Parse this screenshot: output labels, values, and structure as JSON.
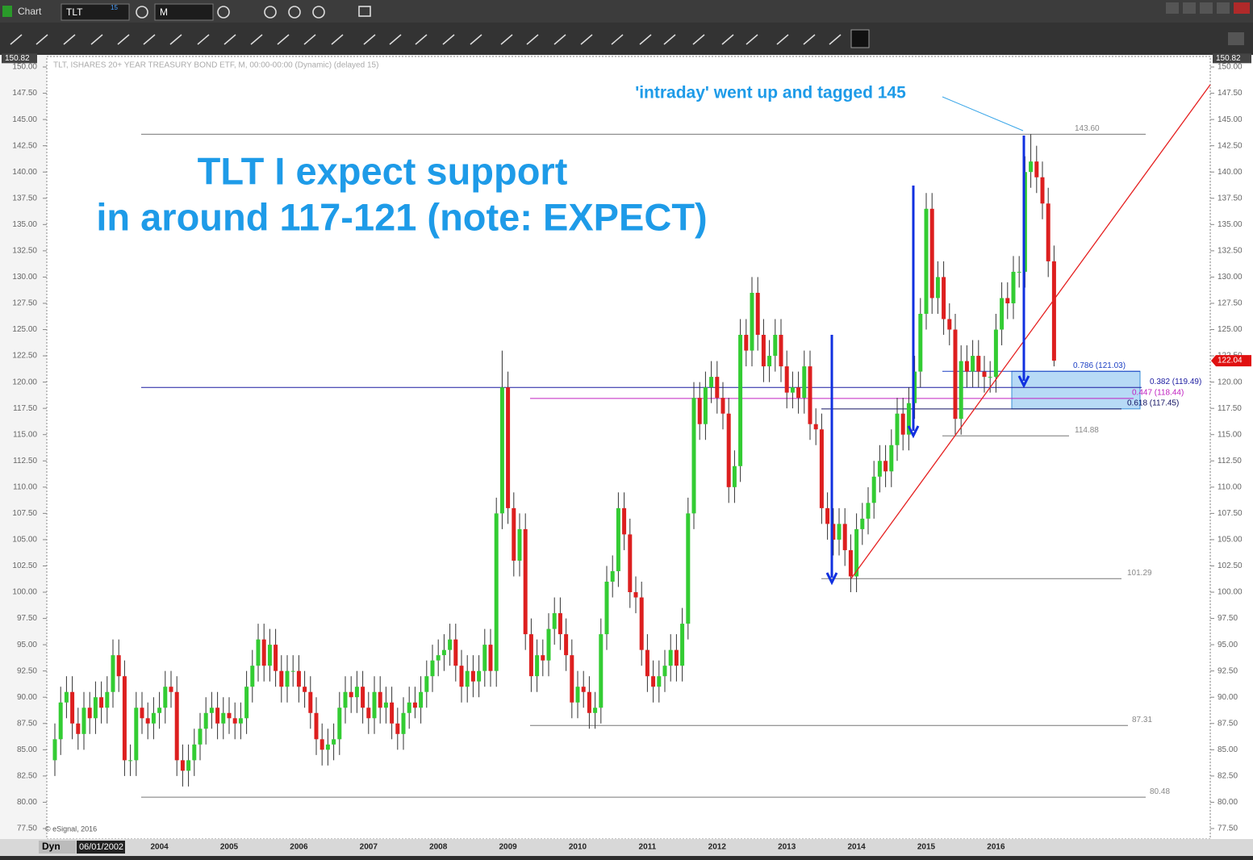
{
  "app": {
    "window_title": "Chart",
    "symbol": "TLT",
    "symbol_badge": "15",
    "interval": "M",
    "mode": "Dyn",
    "start_date": "06/01/2002",
    "copyright": "© eSignal, 2016"
  },
  "chart_data": {
    "type": "candlestick",
    "subtitle": "TLT, ISHARES 20+ YEAR TREASURY BOND ETF, M, 00:00-00:00 (Dynamic) (delayed 15)",
    "annotations": [
      "'intraday' went up and tagged 145",
      "TLT I expect support",
      "in around 117-121 (note: EXPECT)"
    ],
    "price_box": 150.82,
    "last_price": 122.04,
    "up_color": "#33cc33",
    "down_color": "#dd1f1f",
    "categories": [
      null,
      null,
      null,
      null,
      null,
      null,
      null,
      null,
      null,
      null,
      null,
      null,
      null,
      null,
      null,
      null,
      null,
      null,
      "2004",
      null,
      null,
      null,
      null,
      null,
      null,
      null,
      null,
      null,
      null,
      null,
      "2005",
      null,
      null,
      null,
      null,
      null,
      null,
      null,
      null,
      null,
      null,
      null,
      "2006",
      null,
      null,
      null,
      null,
      null,
      null,
      null,
      null,
      null,
      null,
      null,
      "2007",
      null,
      null,
      null,
      null,
      null,
      null,
      null,
      null,
      null,
      null,
      null,
      "2008",
      null,
      null,
      null,
      null,
      null,
      null,
      null,
      null,
      null,
      null,
      null,
      "2009",
      null,
      null,
      null,
      null,
      null,
      null,
      null,
      null,
      null,
      null,
      null,
      "2010",
      null,
      null,
      null,
      null,
      null,
      null,
      null,
      null,
      null,
      null,
      null,
      "2011",
      null,
      null,
      null,
      null,
      null,
      null,
      null,
      null,
      null,
      null,
      null,
      "2012",
      null,
      null,
      null,
      null,
      null,
      null,
      null,
      null,
      null,
      null,
      null,
      "2013",
      null,
      null,
      null,
      null,
      null,
      null,
      null,
      null,
      null,
      null,
      null,
      "2014",
      null,
      null,
      null,
      null,
      null,
      null,
      null,
      null,
      null,
      null,
      null,
      "2015",
      null,
      null,
      null,
      null,
      null,
      null,
      null,
      null,
      null,
      null,
      null,
      "2016",
      null,
      null,
      null,
      null,
      null,
      null,
      null,
      null,
      null,
      null
    ],
    "open": [
      84,
      86,
      89.5,
      90.5,
      87.5,
      86.5,
      89,
      88,
      90,
      89,
      90.5,
      94,
      92,
      84,
      84,
      89,
      88,
      87.5,
      88.5,
      89,
      91,
      90.5,
      84,
      83,
      84,
      85.5,
      87,
      88.5,
      89,
      87.5,
      88.5,
      88,
      87.5,
      88,
      91,
      93,
      95.5,
      93,
      95,
      92.5,
      91,
      92.5,
      92.5,
      91,
      90.5,
      88.5,
      86,
      85,
      85.5,
      86,
      89,
      90.5,
      90,
      91,
      89,
      88,
      90.5,
      89,
      89.5,
      87.5,
      86.5,
      88.5,
      89.5,
      89,
      90.5,
      92,
      93.5,
      94,
      94.5,
      95.5,
      93,
      91,
      92.5,
      91.5,
      92.5,
      95,
      92.5,
      107.5,
      119.5,
      108,
      103,
      106,
      96,
      92,
      94,
      93.5,
      96.5,
      98,
      96,
      94,
      89.5,
      91,
      90.5,
      88.5,
      89,
      96,
      101,
      102,
      108,
      105.5,
      100,
      99.5,
      94.5,
      92,
      91,
      92,
      93,
      94.5,
      93,
      97,
      107.5,
      118.5,
      116,
      119.5,
      120.5,
      118.5,
      117,
      110,
      112,
      124.5,
      123,
      128.5,
      124.5,
      121.5,
      122.5,
      124.5,
      121.5,
      119,
      119.5,
      118.5,
      121.5,
      116,
      115.5,
      108,
      106.5,
      105,
      106.5,
      104,
      101.5,
      106,
      107,
      108.5,
      111,
      112.5,
      111.5,
      114,
      117,
      115,
      118,
      121,
      126.5,
      136.5,
      128,
      130,
      126,
      125,
      116.5,
      122,
      121,
      122.5,
      121,
      120.5,
      120.5,
      125,
      128,
      127.5,
      130.5,
      130.5,
      140,
      141,
      139.5,
      137,
      131.5
    ],
    "high": [
      87.5,
      91,
      92,
      92,
      89,
      90.5,
      90.5,
      91.5,
      91.5,
      92,
      95.5,
      95.5,
      93.5,
      85.5,
      90.5,
      90.5,
      89.5,
      90,
      90.5,
      92.5,
      92.5,
      92,
      85.5,
      85.5,
      87,
      88.5,
      90,
      90.5,
      90.5,
      90,
      90,
      89.5,
      89.5,
      92.5,
      94.5,
      97,
      97,
      96.5,
      96.5,
      94,
      94,
      94,
      94,
      92.5,
      92,
      90,
      87.5,
      87,
      87.5,
      90.5,
      92,
      92,
      92.5,
      92.5,
      90.5,
      92,
      92,
      91,
      91,
      89,
      90,
      91,
      91,
      92,
      93.5,
      95,
      95.5,
      96,
      97,
      97,
      94.5,
      94,
      94,
      94,
      96.5,
      96.5,
      109,
      123,
      121,
      109.5,
      107.5,
      107.5,
      97.5,
      95.5,
      95.5,
      98,
      99.5,
      99.5,
      97.5,
      95.5,
      92.5,
      92.5,
      92,
      90.5,
      97.5,
      102.5,
      103.5,
      109.5,
      109.5,
      107,
      101.5,
      101,
      96,
      93.5,
      93.5,
      94.5,
      96,
      96,
      98.5,
      109,
      120,
      120,
      121,
      122,
      122,
      120,
      118.5,
      113.5,
      126,
      126,
      130,
      130,
      126,
      124,
      126,
      126,
      123,
      121,
      121,
      123,
      123,
      117.5,
      117,
      109.5,
      108,
      108,
      108,
      105.5,
      107.5,
      108.5,
      110,
      112.5,
      114,
      114,
      115.5,
      118.5,
      118.5,
      119.5,
      122.5,
      128,
      138,
      138,
      131.5,
      131.5,
      127.5,
      126.5,
      123.5,
      123.5,
      124,
      124,
      122.5,
      122,
      126.5,
      129.5,
      129.5,
      132,
      132,
      141.5,
      143.6,
      142.5,
      141,
      138.5,
      133
    ],
    "low": [
      82.5,
      84.5,
      88,
      86,
      85,
      85,
      86.5,
      86.5,
      87.5,
      87.5,
      89,
      90.5,
      82.5,
      82.5,
      82.5,
      86.5,
      86,
      86,
      87,
      87.5,
      89,
      82.5,
      81.5,
      81.5,
      82.5,
      84,
      85.5,
      87,
      86,
      86,
      86.5,
      86,
      86,
      86.5,
      89.5,
      91.5,
      91.5,
      91.5,
      91,
      89.5,
      89.5,
      91,
      89.5,
      89,
      87,
      84.5,
      83.5,
      83.5,
      84,
      84.5,
      87.5,
      88.5,
      88.5,
      87.5,
      86.5,
      86.5,
      87.5,
      87.5,
      86,
      85,
      85,
      87,
      88,
      87.5,
      89,
      90.5,
      92,
      92.5,
      93,
      91.5,
      89.5,
      89.5,
      90,
      90,
      91,
      91,
      91,
      106,
      106.5,
      101.5,
      101.5,
      94.5,
      90.5,
      90.5,
      92,
      92,
      95,
      94.5,
      92.5,
      88,
      88,
      89,
      87,
      87,
      87.5,
      94.5,
      99.5,
      100.5,
      104,
      98.5,
      98,
      93,
      90.5,
      89.5,
      89.5,
      90.5,
      91.5,
      91.5,
      91.5,
      95.5,
      106,
      114.5,
      114.5,
      118,
      117,
      115.5,
      108.5,
      108.5,
      110.5,
      121.5,
      121.5,
      123,
      120,
      120,
      121,
      120,
      117.5,
      117.5,
      117,
      117,
      114.5,
      114,
      106.5,
      105,
      103.5,
      103.5,
      102.5,
      100,
      100,
      104.5,
      105.5,
      107,
      109.5,
      110,
      110,
      112.5,
      113.5,
      113.5,
      116.5,
      119.5,
      125,
      126.5,
      126.5,
      124.5,
      123.5,
      115,
      115,
      119.5,
      119.5,
      119.5,
      119,
      119,
      119,
      123.5,
      126,
      126,
      129,
      129,
      138.5,
      138,
      135.5,
      130,
      121.5
    ],
    "close": [
      86,
      89.5,
      90.5,
      87.5,
      86.5,
      89,
      88,
      90,
      89,
      90.5,
      94,
      92,
      84,
      84,
      89,
      88,
      87.5,
      88.5,
      89,
      91,
      90.5,
      84,
      83,
      84,
      85.5,
      87,
      88.5,
      89,
      87.5,
      88.5,
      88,
      87.5,
      88,
      91,
      93,
      95.5,
      93,
      95,
      92.5,
      91,
      92.5,
      92.5,
      91,
      90.5,
      88.5,
      86,
      85,
      85.5,
      86,
      89,
      90.5,
      90,
      91,
      89,
      88,
      90.5,
      89,
      89.5,
      87.5,
      86.5,
      88.5,
      89.5,
      89,
      90.5,
      92,
      93.5,
      94,
      94.5,
      95.5,
      93,
      91,
      92.5,
      91.5,
      92.5,
      95,
      92.5,
      107.5,
      119.5,
      108,
      103,
      106,
      96,
      92,
      94,
      93.5,
      96.5,
      98,
      96,
      94,
      89.5,
      91,
      90.5,
      88.5,
      89,
      96,
      101,
      102,
      108,
      105.5,
      100,
      99.5,
      94.5,
      92,
      91,
      92,
      93,
      94.5,
      93,
      97,
      107.5,
      118.5,
      116,
      119.5,
      120.5,
      118.5,
      117,
      110,
      112,
      124.5,
      123,
      128.5,
      124.5,
      121.5,
      122.5,
      124.5,
      121.5,
      119,
      119.5,
      118.5,
      121.5,
      116,
      115.5,
      108,
      106.5,
      105,
      106.5,
      104,
      101.5,
      106,
      107,
      108.5,
      111,
      112.5,
      111.5,
      114,
      117,
      115,
      118,
      121,
      126.5,
      136.5,
      128,
      130,
      126,
      125,
      116.5,
      122,
      121,
      122.5,
      121,
      120.5,
      120.5,
      125,
      128,
      127.5,
      130.5,
      130.5,
      140,
      141,
      139.5,
      137,
      131.5,
      122.04
    ],
    "ylim": [
      76.5,
      151
    ],
    "yticks": [
      {
        "value": 77.5,
        "label": "77.50"
      },
      {
        "value": 80,
        "label": "80.00"
      },
      {
        "value": 82.5,
        "label": "82.50"
      },
      {
        "value": 85,
        "label": "85.00"
      },
      {
        "value": 87.5,
        "label": "87.50"
      },
      {
        "value": 90,
        "label": "90.00"
      },
      {
        "value": 92.5,
        "label": "92.50"
      },
      {
        "value": 95,
        "label": "95.00"
      },
      {
        "value": 97.5,
        "label": "97.50"
      },
      {
        "value": 100,
        "label": "100.00"
      },
      {
        "value": 102.5,
        "label": "102.50"
      },
      {
        "value": 105,
        "label": "105.00"
      },
      {
        "value": 107.5,
        "label": "107.50"
      },
      {
        "value": 110,
        "label": "110.00"
      },
      {
        "value": 112.5,
        "label": "112.50"
      },
      {
        "value": 115,
        "label": "115.00"
      },
      {
        "value": 117.5,
        "label": "117.50"
      },
      {
        "value": 120,
        "label": "120.00"
      },
      {
        "value": 122.5,
        "label": "122.50"
      },
      {
        "value": 125,
        "label": "125.00"
      },
      {
        "value": 127.5,
        "label": "127.50"
      },
      {
        "value": 130,
        "label": "130.00"
      },
      {
        "value": 132.5,
        "label": "132.50"
      },
      {
        "value": 135,
        "label": "135.00"
      },
      {
        "value": 137.5,
        "label": "137.50"
      },
      {
        "value": 140,
        "label": "140.00"
      },
      {
        "value": 142.5,
        "label": "142.50"
      },
      {
        "value": 145,
        "label": "145.00"
      },
      {
        "value": 147.5,
        "label": "147.50"
      },
      {
        "value": 150,
        "label": "150.00"
      }
    ],
    "levels": [
      {
        "value": 143.6,
        "label": "143.60"
      },
      {
        "value": 114.88,
        "label": "114.88"
      },
      {
        "value": 101.29,
        "label": "101.29"
      },
      {
        "value": 87.31,
        "label": "87.31"
      },
      {
        "value": 80.48,
        "label": "80.48"
      }
    ],
    "fib_levels": [
      {
        "value": 121.03,
        "label": "0.786 (121.03)",
        "color": "#1b3fc4"
      },
      {
        "value": 119.49,
        "label": "0.382 (119.49)",
        "color": "#1a1aa0"
      },
      {
        "value": 118.44,
        "label": "0.447 (118.44)",
        "color": "#c020c0"
      },
      {
        "value": 117.45,
        "label": "0.618 (117.45)",
        "color": "#101060"
      }
    ]
  }
}
